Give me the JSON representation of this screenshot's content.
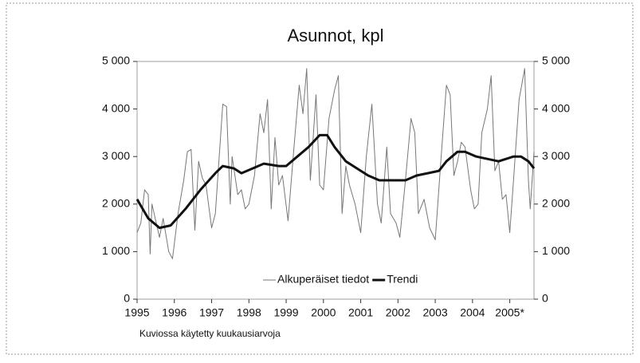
{
  "chart_data": {
    "type": "line",
    "title": "Asunnot, kpl",
    "note": "Kuviossa käytetty kuukausiarvoja",
    "xlim": [
      1995,
      2005.65
    ],
    "xticks": [
      1995,
      1996,
      1997,
      1998,
      1999,
      2000,
      2001,
      2002,
      2003,
      2004,
      {
        "value": 2005,
        "label": "2005*"
      }
    ],
    "ylim": [
      0,
      5000
    ],
    "yticks": [
      {
        "value": 0,
        "label": "0"
      },
      {
        "value": 1000,
        "label": "1 000"
      },
      {
        "value": 2000,
        "label": "2 000"
      },
      {
        "value": 3000,
        "label": "3 000"
      },
      {
        "value": 4000,
        "label": "4 000"
      },
      {
        "value": 5000,
        "label": "5 000"
      }
    ],
    "y2lim": [
      0,
      5000
    ],
    "y2ticks": [
      {
        "value": 0,
        "label": "0"
      },
      {
        "value": 1000,
        "label": "1 000"
      },
      {
        "value": 2000,
        "label": "2 000"
      },
      {
        "value": 3000,
        "label": "3 000"
      },
      {
        "value": 4000,
        "label": "4 000"
      },
      {
        "value": 5000,
        "label": "5 000"
      }
    ],
    "legend": "bottom",
    "series": [
      {
        "name": "Alkuperäiset tiedot",
        "color": "#777777",
        "width": 1,
        "x": [
          1995.0,
          1995.1,
          1995.2,
          1995.3,
          1995.35,
          1995.4,
          1995.6,
          1995.7,
          1995.85,
          1995.95,
          1996.1,
          1996.25,
          1996.35,
          1996.45,
          1996.55,
          1996.65,
          1996.75,
          1996.85,
          1997.0,
          1997.1,
          1997.3,
          1997.4,
          1997.5,
          1997.55,
          1997.7,
          1997.8,
          1997.9,
          1998.0,
          1998.15,
          1998.3,
          1998.4,
          1998.5,
          1998.6,
          1998.7,
          1998.8,
          1998.9,
          1999.05,
          1999.2,
          1999.35,
          1999.45,
          1999.55,
          1999.65,
          1999.8,
          1999.9,
          2000.0,
          2000.15,
          2000.3,
          2000.4,
          2000.5,
          2000.6,
          2000.7,
          2000.85,
          2001.0,
          2001.15,
          2001.3,
          2001.45,
          2001.55,
          2001.7,
          2001.8,
          2001.95,
          2002.05,
          2002.2,
          2002.35,
          2002.45,
          2002.55,
          2002.7,
          2002.85,
          2003.0,
          2003.15,
          2003.3,
          2003.4,
          2003.5,
          2003.6,
          2003.7,
          2003.8,
          2003.95,
          2004.05,
          2004.15,
          2004.25,
          2004.4,
          2004.5,
          2004.6,
          2004.7,
          2004.8,
          2004.9,
          2005.0,
          2005.1,
          2005.25,
          2005.4,
          2005.5,
          2005.55,
          2005.65
        ],
        "values": [
          1400,
          1600,
          2300,
          2200,
          950,
          2000,
          1300,
          1700,
          1000,
          850,
          1800,
          2500,
          3100,
          3150,
          1450,
          2900,
          2550,
          2400,
          1500,
          1800,
          4100,
          4050,
          2000,
          3000,
          2200,
          2300,
          1900,
          2000,
          2600,
          3900,
          3500,
          4200,
          1900,
          3400,
          2400,
          2600,
          1650,
          3100,
          4500,
          3900,
          4850,
          2500,
          4300,
          2400,
          2300,
          3800,
          4400,
          4700,
          1800,
          2800,
          2400,
          2000,
          1400,
          3000,
          4100,
          2000,
          1600,
          3200,
          1800,
          1600,
          1300,
          2500,
          3800,
          3500,
          1800,
          2100,
          1500,
          1250,
          2900,
          4500,
          4300,
          2600,
          2900,
          3300,
          3200,
          2300,
          1900,
          2000,
          3500,
          4000,
          4700,
          2700,
          2900,
          2100,
          2200,
          1400,
          2500,
          4200,
          4850,
          2500,
          1900,
          3100
        ]
      },
      {
        "name": "Trendi",
        "color": "#111111",
        "width": 3,
        "x": [
          1995.0,
          1995.3,
          1995.6,
          1995.9,
          1996.3,
          1996.7,
          1997.1,
          1997.3,
          1997.6,
          1997.8,
          1998.1,
          1998.4,
          1998.8,
          1999.0,
          1999.3,
          1999.6,
          1999.9,
          2000.1,
          2000.3,
          2000.6,
          2000.9,
          2001.2,
          2001.5,
          2001.9,
          2002.2,
          2002.5,
          2002.8,
          2003.1,
          2003.3,
          2003.6,
          2003.8,
          2004.1,
          2004.4,
          2004.7,
          2004.9,
          2005.1,
          2005.3,
          2005.5,
          2005.65
        ],
        "values": [
          2100,
          1700,
          1500,
          1550,
          1900,
          2300,
          2650,
          2800,
          2750,
          2650,
          2750,
          2850,
          2800,
          2800,
          3000,
          3200,
          3450,
          3450,
          3200,
          2900,
          2750,
          2600,
          2500,
          2500,
          2500,
          2600,
          2650,
          2700,
          2900,
          3100,
          3100,
          3000,
          2950,
          2900,
          2950,
          3000,
          3000,
          2900,
          2750
        ]
      }
    ]
  }
}
